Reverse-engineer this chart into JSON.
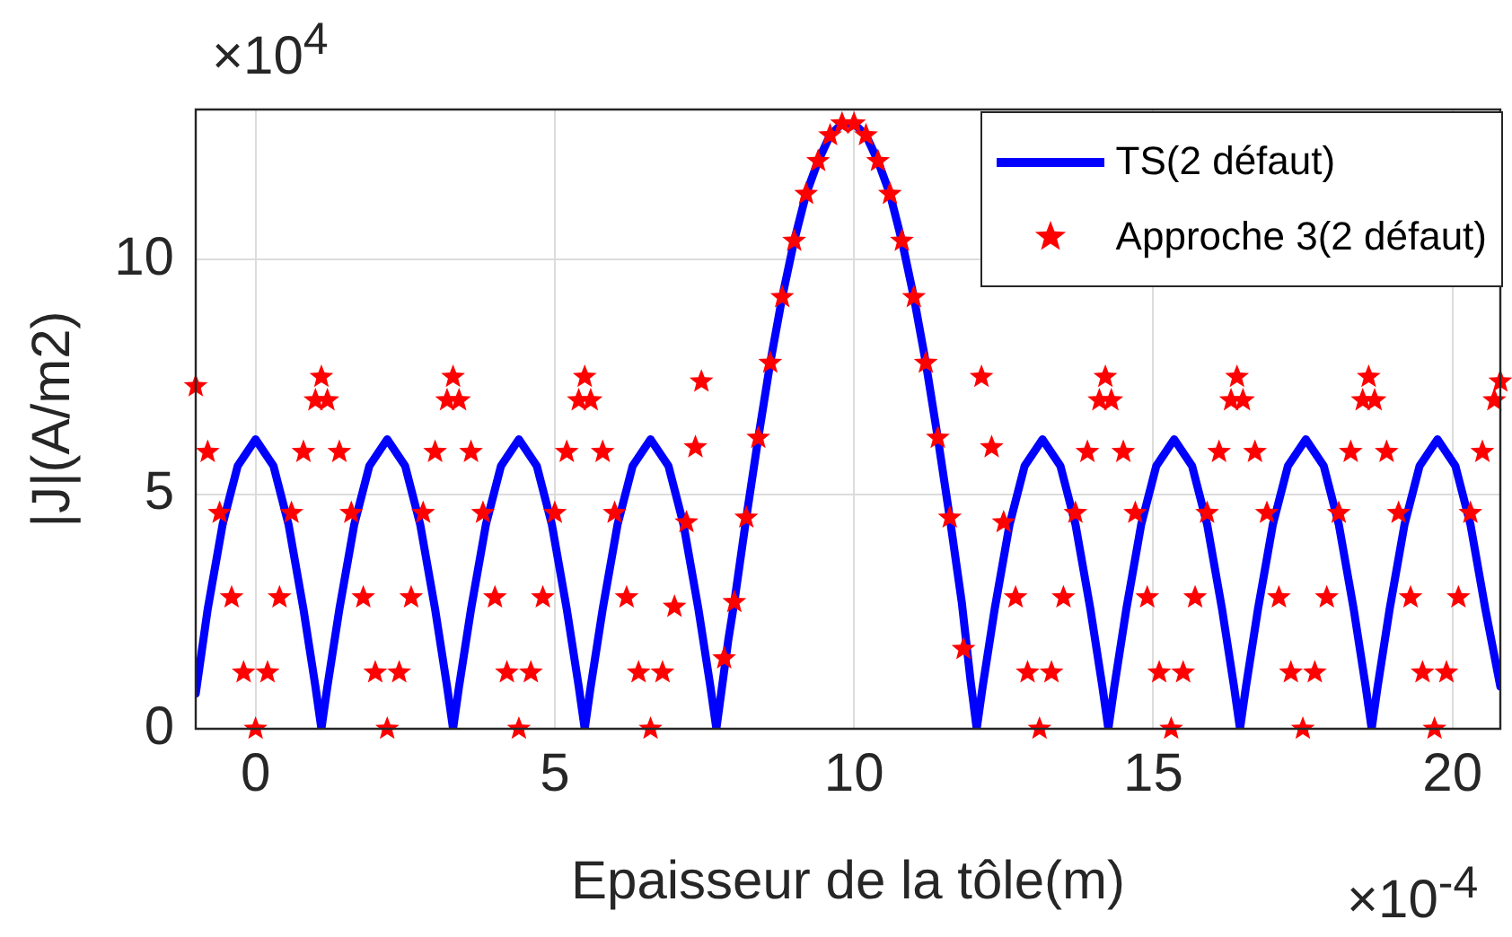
{
  "chart_data": {
    "type": "line",
    "xlabel": "Epaisseur de la tôle(m)",
    "ylabel": "|J|(A/m2)",
    "xlim": [
      -1,
      20.8
    ],
    "ylim": [
      0,
      13.2
    ],
    "xticks": [
      0,
      5,
      10,
      15,
      20
    ],
    "yticks": [
      0,
      5,
      10
    ],
    "grid": true,
    "legend": "top right",
    "annotations": [
      "×10$^{4}$",
      "×10$^{-4}$"
    ],
    "series": [
      {
        "name": "TS(2 défaut)",
        "type": "line",
        "color": "#0000ff",
        "marker": "none",
        "line_style": "solid",
        "x": [
          -1,
          -0.8,
          -0.55,
          -0.3,
          0,
          0.3,
          0.55,
          0.8,
          1.0,
          1.1,
          1.2,
          1.4,
          1.65,
          1.9,
          2.2,
          2.5,
          2.75,
          3.0,
          3.2,
          3.3,
          3.4,
          3.6,
          3.85,
          4.1,
          4.4,
          4.7,
          4.95,
          5.2,
          5.4,
          5.5,
          5.6,
          5.8,
          6.05,
          6.3,
          6.6,
          6.9,
          7.15,
          7.4,
          7.6,
          7.7,
          7.9,
          8.0,
          8.2,
          8.4,
          8.6,
          8.8,
          9.0,
          9.2,
          9.4,
          9.6,
          9.8,
          10.0,
          10.2,
          10.4,
          10.6,
          10.8,
          11.0,
          11.2,
          11.4,
          11.6,
          11.8,
          11.95,
          12.05,
          12.15,
          12.35,
          12.6,
          12.85,
          13.15,
          13.45,
          13.7,
          13.95,
          14.15,
          14.25,
          14.35,
          14.55,
          14.8,
          15.05,
          15.35,
          15.65,
          15.9,
          16.15,
          16.35,
          16.45,
          16.55,
          16.75,
          17.0,
          17.25,
          17.55,
          17.85,
          18.1,
          18.35,
          18.55,
          18.65,
          18.75,
          18.95,
          19.2,
          19.45,
          19.75,
          20.05,
          20.3,
          20.55,
          20.8
        ],
        "values": [
          0.75,
          2.55,
          4.36,
          5.6,
          6.17,
          5.6,
          4.36,
          2.55,
          0.9,
          0,
          0.9,
          2.55,
          4.36,
          5.6,
          6.17,
          5.6,
          4.36,
          2.55,
          0.9,
          0,
          0.9,
          2.55,
          4.36,
          5.6,
          6.17,
          5.6,
          4.36,
          2.55,
          0.9,
          0,
          0.9,
          2.55,
          4.36,
          5.6,
          6.17,
          5.6,
          4.36,
          2.55,
          0.9,
          0,
          1.9,
          2.7,
          4.5,
          6.2,
          7.8,
          9.2,
          10.4,
          11.4,
          12.1,
          12.65,
          12.9,
          12.9,
          12.65,
          12.1,
          11.4,
          10.4,
          9.2,
          7.8,
          6.2,
          4.5,
          2.7,
          1.0,
          0,
          0.9,
          2.55,
          4.36,
          5.6,
          6.17,
          5.6,
          4.36,
          2.55,
          0.9,
          0,
          0.9,
          2.55,
          4.36,
          5.6,
          6.17,
          5.6,
          4.36,
          2.55,
          0.9,
          0,
          0.9,
          2.55,
          4.36,
          5.6,
          6.17,
          5.6,
          4.36,
          2.55,
          0.9,
          0,
          0.9,
          2.55,
          4.36,
          5.6,
          6.17,
          5.6,
          4.36,
          2.55,
          0.9
        ]
      },
      {
        "name": "Approche 3(2 défaut)",
        "type": "scatter",
        "color": "#ff0000",
        "marker": "star",
        "x": [
          -1.0,
          -0.8,
          -0.6,
          -0.4,
          -0.2,
          0,
          0.2,
          0.4,
          0.6,
          0.8,
          1.0,
          1.1,
          1.2,
          1.4,
          1.6,
          1.8,
          2.0,
          2.2,
          2.4,
          2.6,
          2.8,
          3.0,
          3.2,
          3.3,
          3.4,
          3.6,
          3.8,
          4.0,
          4.2,
          4.4,
          4.6,
          4.8,
          5.0,
          5.2,
          5.4,
          5.5,
          5.6,
          5.8,
          6.0,
          6.2,
          6.4,
          6.6,
          6.8,
          7.0,
          7.2,
          7.35,
          7.45,
          7.83,
          8.0,
          8.2,
          8.4,
          8.6,
          8.8,
          9.0,
          9.2,
          9.4,
          9.6,
          9.8,
          10.0,
          10.2,
          10.4,
          10.6,
          10.8,
          11.0,
          11.2,
          11.4,
          11.6,
          11.83,
          12.13,
          12.3,
          12.5,
          12.7,
          12.9,
          13.1,
          13.3,
          13.5,
          13.7,
          13.9,
          14.1,
          14.2,
          14.3,
          14.5,
          14.7,
          14.9,
          15.1,
          15.3,
          15.5,
          15.7,
          15.9,
          16.1,
          16.3,
          16.4,
          16.5,
          16.7,
          16.9,
          17.1,
          17.3,
          17.5,
          17.7,
          17.9,
          18.1,
          18.3,
          18.5,
          18.6,
          18.7,
          18.9,
          19.1,
          19.3,
          19.5,
          19.7,
          19.9,
          20.1,
          20.3,
          20.5,
          20.7,
          20.8
        ],
        "values": [
          7.3,
          5.9,
          4.6,
          2.8,
          1.2,
          0,
          1.2,
          2.8,
          4.6,
          5.9,
          7.0,
          7.5,
          7.0,
          5.9,
          4.6,
          2.8,
          1.2,
          0,
          1.2,
          2.8,
          4.6,
          5.9,
          7.0,
          7.5,
          7.0,
          5.9,
          4.6,
          2.8,
          1.2,
          0,
          1.2,
          2.8,
          4.6,
          5.9,
          7.0,
          7.5,
          7.0,
          5.9,
          4.6,
          2.8,
          1.2,
          0,
          1.2,
          2.6,
          4.4,
          6.0,
          7.4,
          1.5,
          2.7,
          4.5,
          6.2,
          7.8,
          9.2,
          10.4,
          11.4,
          12.1,
          12.65,
          12.9,
          12.9,
          12.65,
          12.1,
          11.4,
          10.4,
          9.2,
          7.8,
          6.2,
          4.5,
          1.7,
          7.5,
          6.0,
          4.4,
          2.8,
          1.2,
          0,
          1.2,
          2.8,
          4.6,
          5.9,
          7.0,
          7.5,
          7.0,
          5.9,
          4.6,
          2.8,
          1.2,
          0,
          1.2,
          2.8,
          4.6,
          5.9,
          7.0,
          7.5,
          7.0,
          5.9,
          4.6,
          2.8,
          1.2,
          0,
          1.2,
          2.8,
          4.6,
          5.9,
          7.0,
          7.5,
          7.0,
          5.9,
          4.6,
          2.8,
          1.2,
          0,
          1.2,
          2.8,
          4.6,
          5.9,
          7.0,
          7.4
        ]
      }
    ]
  }
}
